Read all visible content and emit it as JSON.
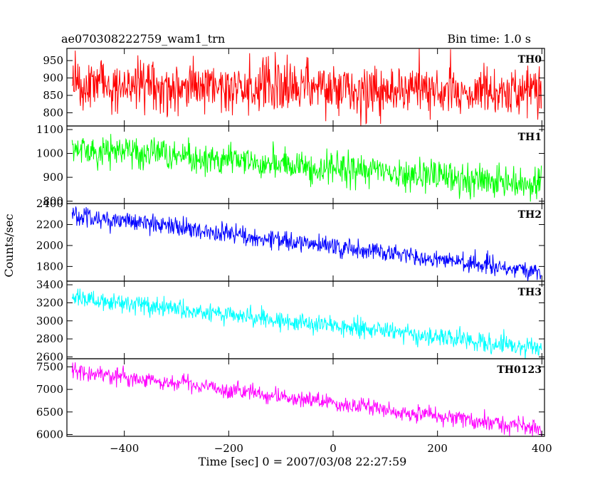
{
  "header": {
    "left_title": "ae070308222759_wam1_trn",
    "right_title": "Bin time: 1.0 s"
  },
  "chart_data": {
    "type": "line",
    "x": {
      "label": "Time [sec] 0 = 2007/03/08 22:27:59",
      "range": [
        -510,
        405
      ],
      "ticks": [
        -400,
        -200,
        0,
        200,
        400
      ],
      "tick_labels": [
        "−400",
        "−200",
        "0",
        "200",
        "400"
      ]
    },
    "ylabel": "Counts/sec",
    "bin_time_s": 1.0,
    "grid": false,
    "panels": [
      {
        "name": "TH0",
        "color": "#ff0000",
        "ylim": [
          762,
          985
        ],
        "yticks": [
          800,
          850,
          900,
          950
        ],
        "series": {
          "t_start": -500,
          "t_end": 399,
          "start_level": 880,
          "end_level": 860,
          "noise_sd": 38
        }
      },
      {
        "name": "TH1",
        "color": "#00ff00",
        "ylim": [
          790,
          1115
        ],
        "yticks": [
          800,
          900,
          1000,
          1100
        ],
        "series": {
          "t_start": -500,
          "t_end": 399,
          "start_level": 1020,
          "end_level": 870,
          "noise_sd": 32
        }
      },
      {
        "name": "TH2",
        "color": "#0000ff",
        "ylim": [
          1660,
          2400
        ],
        "yticks": [
          1800,
          2000,
          2200,
          2400
        ],
        "series": {
          "t_start": -500,
          "t_end": 399,
          "start_level": 2290,
          "end_level": 1750,
          "noise_sd": 45
        }
      },
      {
        "name": "TH3",
        "color": "#00ffff",
        "ylim": [
          2580,
          3440
        ],
        "yticks": [
          2600,
          2800,
          3000,
          3200,
          3400
        ],
        "series": {
          "t_start": -500,
          "t_end": 399,
          "start_level": 3260,
          "end_level": 2700,
          "noise_sd": 55
        }
      },
      {
        "name": "TH0123",
        "color": "#ff00ff",
        "ylim": [
          5960,
          7680
        ],
        "yticks": [
          6000,
          6500,
          7000,
          7500
        ],
        "series": {
          "t_start": -500,
          "t_end": 399,
          "start_level": 7420,
          "end_level": 6130,
          "noise_sd": 95
        }
      }
    ]
  }
}
